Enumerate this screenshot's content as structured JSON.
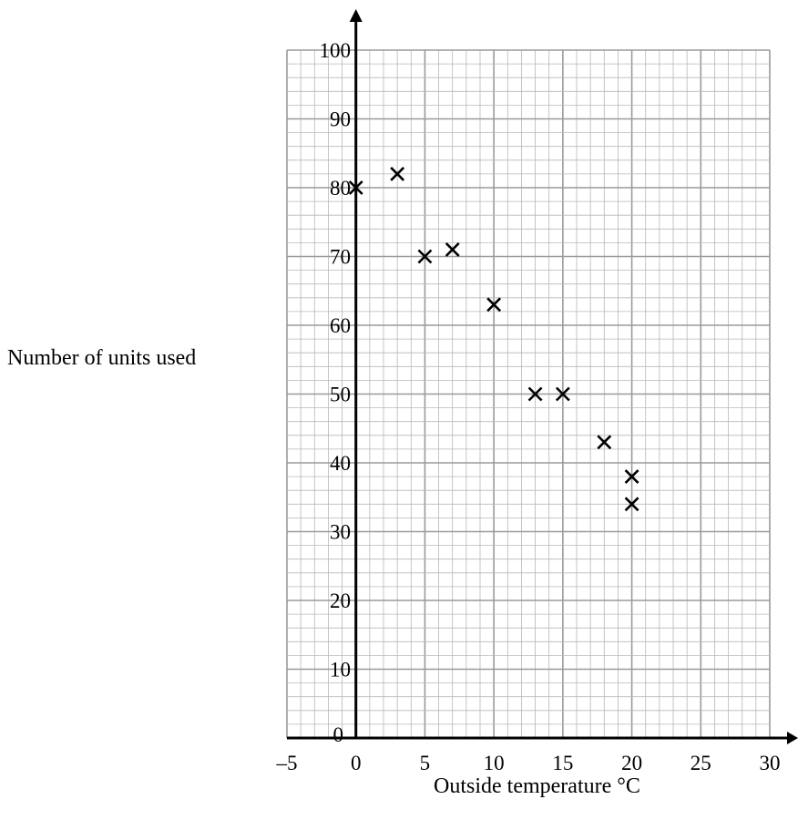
{
  "chart_data": {
    "type": "scatter",
    "xlabel": "Outside temperature °C",
    "ylabel": "Number of units used",
    "xlim": [
      -5,
      30
    ],
    "ylim": [
      0,
      100
    ],
    "x_ticks": [
      "–5",
      "0",
      "5",
      "10",
      "15",
      "20",
      "25",
      "30"
    ],
    "y_ticks": [
      "0",
      "10",
      "20",
      "30",
      "40",
      "50",
      "60",
      "70",
      "80",
      "90",
      "100"
    ],
    "grid": true,
    "marker": "cross",
    "points": [
      {
        "x": 0,
        "y": 80
      },
      {
        "x": 3,
        "y": 82
      },
      {
        "x": 5,
        "y": 70
      },
      {
        "x": 7,
        "y": 71
      },
      {
        "x": 10,
        "y": 63
      },
      {
        "x": 13,
        "y": 50
      },
      {
        "x": 15,
        "y": 50
      },
      {
        "x": 18,
        "y": 43
      },
      {
        "x": 20,
        "y": 38
      },
      {
        "x": 20,
        "y": 34
      }
    ]
  }
}
